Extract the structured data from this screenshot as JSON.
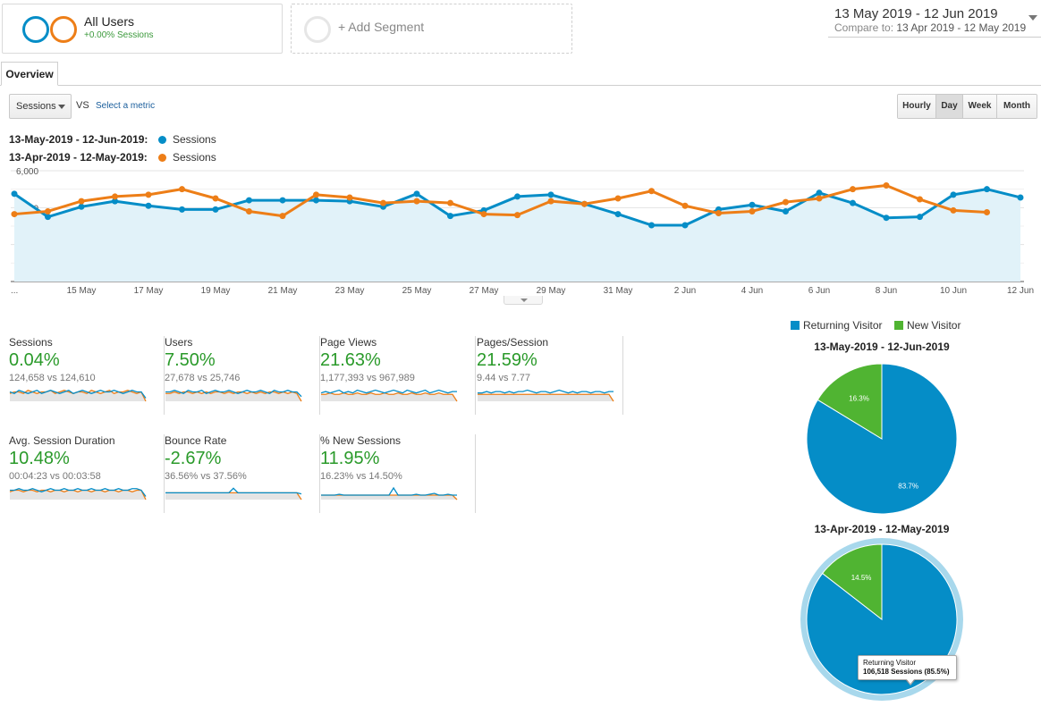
{
  "segment": {
    "title": "All Users",
    "subtitle": "+0.00% Sessions",
    "add_label": "+ Add Segment",
    "colors": {
      "current": "#058dc7",
      "previous": "#ed7e17"
    }
  },
  "date_range": {
    "current": "13 May 2019 - 12 Jun 2019",
    "compare_prefix": "Compare to:",
    "compare": "13 Apr 2019 - 12 May 2019"
  },
  "tabs": [
    "Overview"
  ],
  "controls": {
    "metric": "Sessions",
    "vs": "VS",
    "select_metric": "Select a metric",
    "granularity": [
      {
        "label": "Hourly",
        "active": false
      },
      {
        "label": "Day",
        "active": true
      },
      {
        "label": "Week",
        "active": false
      },
      {
        "label": "Month",
        "active": false
      }
    ]
  },
  "legend": [
    {
      "range": "13-May-2019 - 12-Jun-2019:",
      "series": "Sessions",
      "color": "#058dc7"
    },
    {
      "range": "13-Apr-2019 - 12-May-2019:",
      "series": "Sessions",
      "color": "#ed7e17"
    }
  ],
  "chart_data": {
    "type": "line",
    "y_ticks": [
      "6,000",
      "4,000",
      "2,000"
    ],
    "ylim": [
      0,
      6000
    ],
    "x_tick_labels": [
      "...",
      "15 May",
      "17 May",
      "19 May",
      "21 May",
      "23 May",
      "25 May",
      "27 May",
      "29 May",
      "31 May",
      "2 Jun",
      "4 Jun",
      "6 Jun",
      "8 Jun",
      "10 Jun",
      "12 Jun"
    ],
    "x": [
      "13 May",
      "14 May",
      "15 May",
      "16 May",
      "17 May",
      "18 May",
      "19 May",
      "20 May",
      "21 May",
      "22 May",
      "23 May",
      "24 May",
      "25 May",
      "26 May",
      "27 May",
      "28 May",
      "29 May",
      "30 May",
      "31 May",
      "1 Jun",
      "2 Jun",
      "3 Jun",
      "4 Jun",
      "5 Jun",
      "6 Jun",
      "7 Jun",
      "8 Jun",
      "9 Jun",
      "10 Jun",
      "11 Jun",
      "12 Jun"
    ],
    "grid": true,
    "series": [
      {
        "name": "13-May-2019 - 12-Jun-2019: Sessions",
        "color": "#058dc7",
        "values": [
          4750,
          3500,
          4050,
          4350,
          4100,
          3900,
          3900,
          4400,
          4400,
          4400,
          4350,
          4050,
          4750,
          3550,
          3850,
          4600,
          4700,
          4200,
          3650,
          3050,
          3050,
          3900,
          4150,
          3800,
          4800,
          4250,
          3450,
          3500,
          4700,
          5000,
          4550
        ]
      },
      {
        "name": "13-Apr-2019 - 12-May-2019: Sessions",
        "color": "#ed7e17",
        "values": [
          3650,
          3800,
          4350,
          4600,
          4700,
          5000,
          4500,
          3800,
          3550,
          4700,
          4550,
          4250,
          4350,
          4250,
          3650,
          3600,
          4350,
          4200,
          4500,
          4900,
          4100,
          3700,
          3800,
          4300,
          4500,
          5000,
          5200,
          4450,
          3850,
          3750,
          null
        ]
      }
    ]
  },
  "tiles": [
    {
      "name": "Sessions",
      "value": "0.04%",
      "compare": "124,658 vs 124,610",
      "cur": [
        6,
        5,
        7,
        6,
        5,
        6,
        7,
        5,
        6,
        7,
        6,
        5,
        6,
        7,
        5,
        6,
        7,
        6,
        5,
        6,
        7,
        6,
        6,
        7,
        6,
        5,
        6,
        7,
        6,
        6,
        2
      ],
      "prev": [
        5,
        6,
        6,
        5,
        7,
        6,
        5,
        6,
        6,
        7,
        5,
        6,
        7,
        6,
        5,
        6,
        6,
        5,
        7,
        6,
        5,
        6,
        7,
        5,
        6,
        6,
        7,
        6,
        5,
        6,
        0
      ]
    },
    {
      "name": "Users",
      "value": "7.50%",
      "compare": "27,678 vs 25,746",
      "cur": [
        6,
        6,
        7,
        6,
        5,
        7,
        6,
        6,
        7,
        5,
        6,
        7,
        6,
        6,
        7,
        6,
        5,
        6,
        7,
        6,
        6,
        7,
        6,
        5,
        7,
        6,
        6,
        7,
        6,
        6,
        3
      ],
      "prev": [
        5,
        5,
        6,
        5,
        6,
        6,
        5,
        6,
        5,
        6,
        5,
        6,
        6,
        5,
        6,
        5,
        6,
        6,
        5,
        6,
        5,
        6,
        5,
        6,
        6,
        5,
        6,
        5,
        6,
        5,
        0
      ]
    },
    {
      "name": "Page Views",
      "value": "21.63%",
      "compare": "1,177,393 vs 967,989",
      "cur": [
        6,
        7,
        6,
        7,
        8,
        6,
        7,
        6,
        8,
        7,
        6,
        7,
        8,
        7,
        6,
        7,
        8,
        7,
        6,
        8,
        7,
        6,
        7,
        8,
        6,
        7,
        8,
        7,
        6,
        7,
        7
      ],
      "prev": [
        5,
        5,
        6,
        5,
        5,
        6,
        5,
        5,
        6,
        5,
        5,
        6,
        5,
        5,
        6,
        5,
        5,
        6,
        5,
        5,
        6,
        5,
        5,
        6,
        5,
        5,
        6,
        5,
        5,
        5,
        0
      ]
    },
    {
      "name": "Pages/Session",
      "value": "21.59%",
      "compare": "9.44 vs 7.77",
      "cur": [
        6,
        6,
        7,
        6,
        7,
        7,
        6,
        7,
        6,
        7,
        7,
        8,
        7,
        6,
        7,
        7,
        6,
        7,
        8,
        7,
        6,
        7,
        6,
        7,
        7,
        6,
        7,
        7,
        6,
        7,
        7
      ],
      "prev": [
        5,
        5,
        5,
        5,
        5,
        5,
        5,
        5,
        5,
        5,
        5,
        5,
        5,
        5,
        5,
        5,
        5,
        5,
        5,
        5,
        5,
        5,
        5,
        5,
        5,
        5,
        5,
        5,
        5,
        5,
        0
      ]
    },
    {
      "name": "Avg. Session Duration",
      "value": "10.48%",
      "compare": "00:04:23 vs 00:03:58",
      "cur": [
        6,
        6,
        7,
        6,
        6,
        7,
        6,
        5,
        6,
        7,
        6,
        6,
        7,
        6,
        6,
        7,
        6,
        6,
        7,
        6,
        6,
        7,
        6,
        6,
        7,
        6,
        6,
        7,
        7,
        6,
        2
      ],
      "prev": [
        5,
        6,
        6,
        5,
        6,
        6,
        5,
        6,
        6,
        5,
        6,
        6,
        5,
        6,
        6,
        5,
        6,
        6,
        5,
        6,
        6,
        5,
        6,
        6,
        5,
        6,
        6,
        5,
        6,
        6,
        0
      ]
    },
    {
      "name": "Bounce Rate",
      "value": "-2.67%",
      "compare": "36.56% vs 37.56%",
      "cur": [
        6,
        6,
        6,
        6,
        6,
        6,
        6,
        6,
        6,
        6,
        6,
        6,
        6,
        6,
        6,
        10,
        6,
        6,
        6,
        6,
        6,
        6,
        6,
        6,
        6,
        6,
        6,
        6,
        6,
        6,
        5
      ],
      "prev": [
        6,
        6,
        6,
        6,
        6,
        6,
        6,
        6,
        6,
        6,
        6,
        6,
        6,
        6,
        6,
        6,
        6,
        6,
        6,
        6,
        6,
        6,
        6,
        6,
        6,
        6,
        6,
        6,
        6,
        6,
        0
      ]
    },
    {
      "name": "% New Sessions",
      "value": "11.95%",
      "compare": "16.23% vs 14.50%",
      "cur": [
        5,
        5,
        5,
        5,
        6,
        5,
        5,
        5,
        5,
        5,
        5,
        5,
        5,
        5,
        5,
        5,
        13,
        5,
        5,
        5,
        5,
        6,
        5,
        5,
        6,
        7,
        5,
        5,
        6,
        5,
        5
      ],
      "prev": [
        5,
        5,
        5,
        5,
        5,
        5,
        5,
        5,
        5,
        5,
        5,
        5,
        5,
        5,
        5,
        5,
        5,
        5,
        5,
        5,
        5,
        5,
        5,
        5,
        5,
        5,
        5,
        5,
        5,
        5,
        0
      ]
    }
  ],
  "pie": {
    "legend": [
      {
        "label": "Returning Visitor",
        "color": "#058dc7"
      },
      {
        "label": "New Visitor",
        "color": "#50b432"
      }
    ],
    "charts": [
      {
        "title": "13-May-2019 - 12-Jun-2019",
        "type": "pie",
        "slices": [
          {
            "label": "Returning Visitor",
            "value": 83.7,
            "display": "83.7%"
          },
          {
            "label": "New Visitor",
            "value": 16.3,
            "display": "16.3%"
          }
        ]
      },
      {
        "title": "13-Apr-2019 - 12-May-2019",
        "type": "pie",
        "slices": [
          {
            "label": "Returning Visitor",
            "value": 85.5,
            "display": ""
          },
          {
            "label": "New Visitor",
            "value": 14.5,
            "display": "14.5%"
          }
        ]
      }
    ],
    "tooltip": {
      "label": "Returning Visitor",
      "value": "106,518 Sessions (85.5%)"
    }
  }
}
